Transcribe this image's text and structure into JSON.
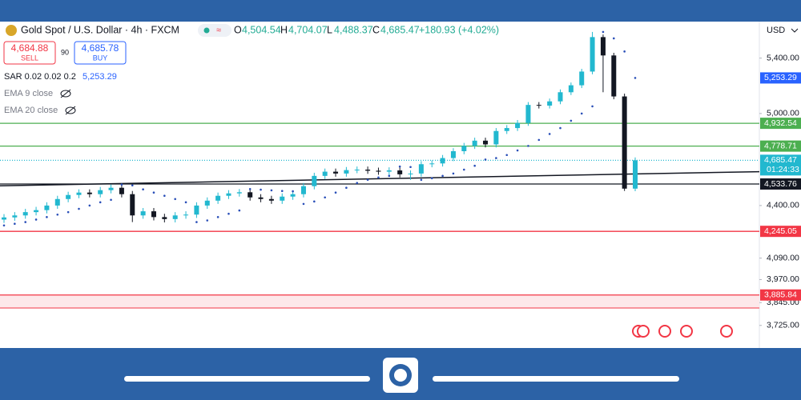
{
  "header": {
    "symbol": "Gold Spot / U.S. Dollar · 4h · FXCM",
    "ohlc": {
      "o_label": "O",
      "o": "4,504.54",
      "h_label": "H",
      "h": "4,704.07",
      "l_label": "L",
      "l": "4,488.37",
      "c_label": "C",
      "c": "4,685.47",
      "change": "+180.93 (+4.02%)"
    },
    "sell": {
      "price": "4,684.88",
      "label": "SELL"
    },
    "spread": "90",
    "buy": {
      "price": "4,685.78",
      "label": "BUY"
    },
    "indicators": [
      {
        "name": "SAR 0.02 0.02 0.2",
        "value": "5,253.29"
      },
      {
        "name": "EMA 9 close"
      },
      {
        "name": "EMA 20 close"
      }
    ],
    "currency": "USD"
  },
  "chart_data": {
    "type": "candlestick",
    "log_scale": true,
    "grid": false,
    "up_color": "#22b8cf",
    "down_color": "#131722",
    "sar_color": "#2a4fb8",
    "ylim": [
      3610,
      5662
    ],
    "yticks": [
      {
        "value": 5400,
        "label": "5,400.00"
      },
      {
        "value": 5000,
        "label": "5,000.00"
      },
      {
        "value": 4400,
        "label": "4,400.00"
      },
      {
        "value": 4090,
        "label": "4,090.00"
      },
      {
        "value": 3970,
        "label": "3,970.00"
      },
      {
        "value": 3845,
        "label": "3,845.00"
      },
      {
        "value": 3725,
        "label": "3,725.00"
      }
    ],
    "open": [
      4315,
      4328,
      4340,
      4360,
      4372,
      4400,
      4440,
      4465,
      4480,
      4470,
      4495,
      4510,
      4470,
      4340,
      4365,
      4330,
      4318,
      4340,
      4345,
      4400,
      4430,
      4460,
      4475,
      4482,
      4450,
      4440,
      4430,
      4455,
      4470,
      4520,
      4585,
      4612,
      4600,
      4622,
      4625,
      4618,
      4612,
      4620,
      4595,
      4600,
      4660,
      4665,
      4700,
      4745,
      4780,
      4815,
      4790,
      4880,
      4900,
      4935,
      5060,
      5055,
      5085,
      5150,
      5200,
      5300,
      5560,
      5420,
      5120,
      4504.54
    ],
    "high": [
      4348,
      4360,
      4380,
      4392,
      4420,
      4460,
      4485,
      4500,
      4500,
      4515,
      4530,
      4530,
      4490,
      4385,
      4385,
      4350,
      4360,
      4365,
      4420,
      4450,
      4480,
      4495,
      4502,
      4502,
      4470,
      4460,
      4475,
      4490,
      4540,
      4605,
      4632,
      4632,
      4642,
      4645,
      4645,
      4638,
      4640,
      4640,
      4620,
      4680,
      4685,
      4720,
      4765,
      4800,
      4835,
      4835,
      4900,
      4920,
      4955,
      5080,
      5080,
      5105,
      5170,
      5220,
      5320,
      5600,
      5580,
      5440,
      5140,
      4704.07
    ],
    "low": [
      4295,
      4308,
      4320,
      4340,
      4352,
      4380,
      4420,
      4445,
      4450,
      4450,
      4475,
      4450,
      4300,
      4320,
      4310,
      4298,
      4298,
      4320,
      4325,
      4380,
      4410,
      4440,
      4455,
      4430,
      4420,
      4410,
      4410,
      4435,
      4450,
      4500,
      4565,
      4580,
      4580,
      4602,
      4598,
      4592,
      4592,
      4575,
      4560,
      4580,
      4640,
      4645,
      4680,
      4725,
      4760,
      4770,
      4770,
      4860,
      4880,
      4915,
      5035,
      5035,
      5065,
      5130,
      5180,
      5280,
      5150,
      5100,
      4490,
      4488.37
    ],
    "close": [
      4328,
      4340,
      4360,
      4372,
      4400,
      4440,
      4465,
      4480,
      4470,
      4495,
      4510,
      4470,
      4340,
      4365,
      4330,
      4318,
      4340,
      4345,
      4400,
      4430,
      4460,
      4475,
      4482,
      4450,
      4440,
      4430,
      4455,
      4470,
      4520,
      4585,
      4612,
      4600,
      4622,
      4625,
      4618,
      4612,
      4620,
      4595,
      4600,
      4660,
      4665,
      4700,
      4745,
      4780,
      4815,
      4790,
      4880,
      4900,
      4935,
      5060,
      5055,
      5085,
      5150,
      5200,
      5300,
      5560,
      5420,
      5120,
      4504.54,
      4685.47
    ],
    "sar": [
      4280,
      4290,
      4300,
      4315,
      4330,
      4345,
      4360,
      4380,
      4400,
      4420,
      4435,
      4530,
      4525,
      4500,
      4480,
      4460,
      4440,
      4420,
      4300,
      4310,
      4330,
      4350,
      4370,
      4502,
      4498,
      4494,
      4490,
      4488,
      4410,
      4425,
      4450,
      4480,
      4510,
      4540,
      4560,
      4575,
      4585,
      4645,
      4642,
      4560,
      4570,
      4585,
      4600,
      4625,
      4650,
      4690,
      4700,
      4720,
      4750,
      4780,
      4820,
      4860,
      4900,
      4950,
      5000,
      5050,
      5600,
      5550,
      5450,
      5253.29
    ],
    "trendline": [
      4522,
      4612
    ],
    "levels": [
      {
        "value": 5253.29,
        "label": "5,253.29",
        "color": "#2962ff",
        "line": "none"
      },
      {
        "value": 4932.54,
        "label": "4,932.54",
        "color": "#4caf50",
        "line": "solid"
      },
      {
        "value": 4778.71,
        "label": "4,778.71",
        "color": "#4caf50",
        "line": "solid"
      },
      {
        "value": 4685.47,
        "label": "4,685.47",
        "color": "#22b8cf",
        "line": "dotted",
        "countdown": "01:24:33"
      },
      {
        "value": 4533.76,
        "label": "4,533.76",
        "color": "#131722",
        "line": "solid"
      },
      {
        "value": 4245.05,
        "label": "4,245.05",
        "color": "#f23645",
        "line": "solid"
      },
      {
        "value": 3885.84,
        "label": "3,885.84",
        "color": "#f23645",
        "line": "solid"
      }
    ]
  }
}
